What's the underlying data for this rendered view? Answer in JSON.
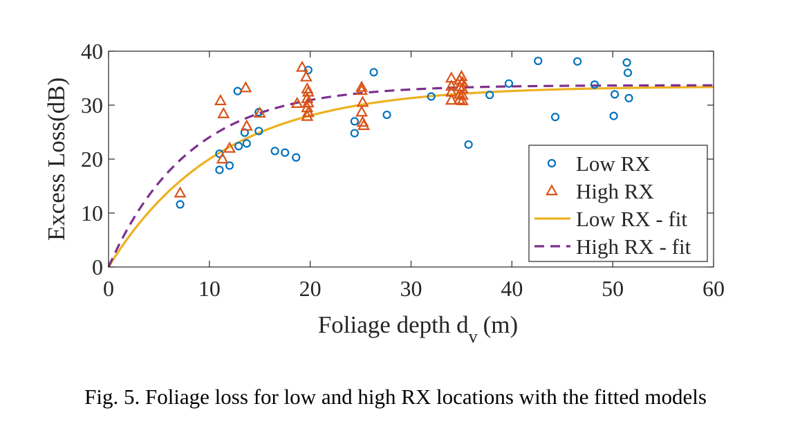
{
  "chart_data": {
    "type": "scatter",
    "xlabel": "Foliage depth d",
    "xlabel_subscript": "v",
    "xlabel_unit": "(m)",
    "ylabel": "Excess Loss(dB)",
    "xlim": [
      0,
      60
    ],
    "ylim": [
      0,
      40
    ],
    "xticks": [
      "0",
      "10",
      "20",
      "30",
      "40",
      "50",
      "60"
    ],
    "yticks": [
      "0",
      "10",
      "20",
      "30",
      "40"
    ],
    "grid": false,
    "legend_position": "bottom-right",
    "series": [
      {
        "name": "Low RX",
        "kind": "marker-circle",
        "color": "#0072BD",
        "points": [
          [
            7.1,
            11.6
          ],
          [
            11.0,
            21.0
          ],
          [
            11.0,
            18.0
          ],
          [
            12.0,
            18.8
          ],
          [
            12.8,
            32.6
          ],
          [
            12.9,
            22.4
          ],
          [
            13.5,
            24.9
          ],
          [
            13.7,
            22.9
          ],
          [
            14.9,
            28.7
          ],
          [
            14.9,
            25.2
          ],
          [
            16.5,
            21.5
          ],
          [
            17.5,
            21.2
          ],
          [
            18.6,
            20.3
          ],
          [
            19.8,
            36.5
          ],
          [
            24.4,
            27.0
          ],
          [
            24.4,
            24.8
          ],
          [
            26.3,
            36.1
          ],
          [
            27.6,
            28.2
          ],
          [
            32.0,
            31.6
          ],
          [
            35.7,
            22.7
          ],
          [
            37.8,
            31.9
          ],
          [
            39.7,
            34.0
          ],
          [
            42.6,
            38.2
          ],
          [
            44.3,
            27.8
          ],
          [
            46.5,
            38.1
          ],
          [
            48.2,
            33.8
          ],
          [
            50.1,
            28.0
          ],
          [
            50.2,
            32.0
          ],
          [
            51.4,
            37.9
          ],
          [
            51.5,
            36.0
          ],
          [
            51.6,
            31.3
          ]
        ]
      },
      {
        "name": "High RX",
        "kind": "marker-triangle",
        "color": "#D95319",
        "points": [
          [
            7.1,
            13.7
          ],
          [
            11.1,
            30.8
          ],
          [
            11.4,
            28.4
          ],
          [
            11.3,
            20.0
          ],
          [
            12.0,
            22.0
          ],
          [
            13.6,
            33.2
          ],
          [
            13.7,
            26.1
          ],
          [
            15.0,
            28.5
          ],
          [
            18.7,
            30.3
          ],
          [
            19.2,
            37.0
          ],
          [
            19.6,
            35.2
          ],
          [
            19.7,
            33.0
          ],
          [
            19.8,
            32.4
          ],
          [
            19.7,
            31.2
          ],
          [
            19.8,
            30.4
          ],
          [
            19.7,
            29.5
          ],
          [
            19.8,
            28.6
          ],
          [
            19.7,
            27.9
          ],
          [
            25.1,
            33.3
          ],
          [
            25.1,
            32.7
          ],
          [
            25.2,
            30.5
          ],
          [
            25.1,
            28.7
          ],
          [
            25.2,
            26.8
          ],
          [
            25.3,
            26.2
          ],
          [
            34.0,
            35.0
          ],
          [
            34.0,
            33.5
          ],
          [
            34.0,
            32.4
          ],
          [
            34.0,
            30.9
          ],
          [
            34.8,
            34.6
          ],
          [
            34.8,
            33.4
          ],
          [
            34.8,
            32.0
          ],
          [
            34.8,
            31.0
          ],
          [
            35.0,
            35.3
          ],
          [
            35.1,
            34.2
          ],
          [
            35.1,
            33.0
          ],
          [
            35.1,
            31.8
          ],
          [
            35.1,
            30.8
          ]
        ]
      },
      {
        "name": "Low RX - fit",
        "kind": "line-solid",
        "color": "#EDB120",
        "model": {
          "asymptote": 33.5,
          "decay_constant": 11.0
        }
      },
      {
        "name": "High RX - fit",
        "kind": "line-dashed",
        "color": "#7E2F8E",
        "model": {
          "asymptote": 33.7,
          "decay_constant": 8.0
        }
      }
    ]
  },
  "caption": "Fig. 5.  Foliage loss for low and high RX locations with the fitted models"
}
